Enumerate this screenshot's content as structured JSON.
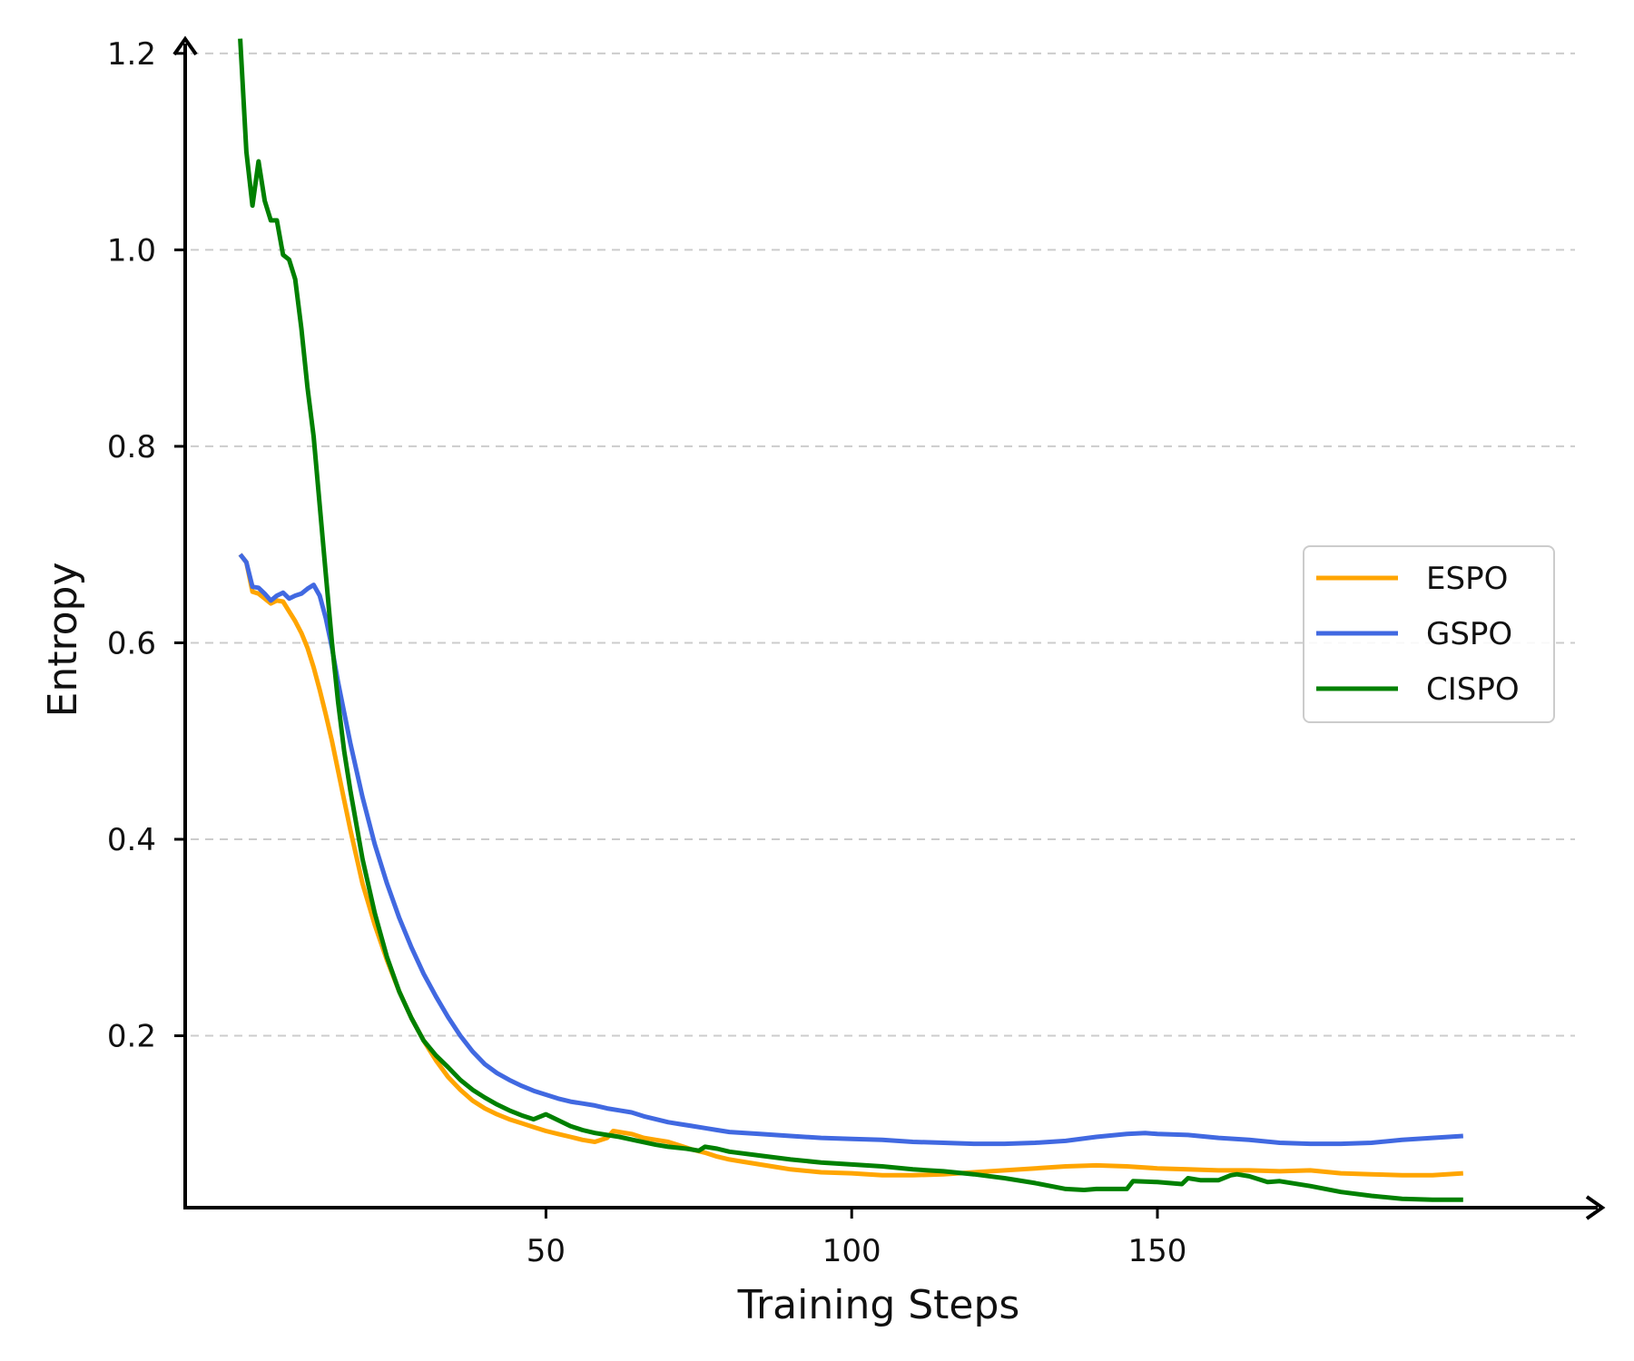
{
  "chart_data": {
    "type": "line",
    "title": "",
    "xlabel": "Training Steps",
    "ylabel": "Entropy",
    "xlim": [
      -9,
      222
    ],
    "ylim": [
      0.025,
      1.21
    ],
    "xticks": [
      50,
      100,
      150
    ],
    "xtick_labels": [
      "50",
      "100",
      "150"
    ],
    "yticks": [
      0.2,
      0.4,
      0.6,
      0.8,
      1.0,
      1.2
    ],
    "ytick_labels": [
      "0.2",
      "0.4",
      "0.6",
      "0.8",
      "1.0",
      "1.2"
    ],
    "grid": "y-dashed",
    "legend_position": "center-right",
    "series": [
      {
        "name": "ESPO",
        "color": "#FFA500",
        "points": [
          [
            0,
            0.69
          ],
          [
            1,
            0.682
          ],
          [
            2,
            0.652
          ],
          [
            3,
            0.65
          ],
          [
            4,
            0.645
          ],
          [
            5,
            0.64
          ],
          [
            6,
            0.643
          ],
          [
            7,
            0.642
          ],
          [
            8,
            0.632
          ],
          [
            9,
            0.622
          ],
          [
            10,
            0.61
          ],
          [
            11,
            0.595
          ],
          [
            12,
            0.575
          ],
          [
            13,
            0.552
          ],
          [
            14,
            0.527
          ],
          [
            15,
            0.5
          ],
          [
            16,
            0.47
          ],
          [
            17,
            0.44
          ],
          [
            18,
            0.41
          ],
          [
            20,
            0.355
          ],
          [
            22,
            0.313
          ],
          [
            24,
            0.277
          ],
          [
            26,
            0.245
          ],
          [
            28,
            0.218
          ],
          [
            30,
            0.195
          ],
          [
            32,
            0.175
          ],
          [
            34,
            0.158
          ],
          [
            36,
            0.145
          ],
          [
            38,
            0.134
          ],
          [
            40,
            0.126
          ],
          [
            42,
            0.12
          ],
          [
            44,
            0.115
          ],
          [
            46,
            0.111
          ],
          [
            48,
            0.107
          ],
          [
            50,
            0.103
          ],
          [
            52,
            0.1
          ],
          [
            54,
            0.097
          ],
          [
            56,
            0.094
          ],
          [
            58,
            0.092
          ],
          [
            60,
            0.096
          ],
          [
            61,
            0.103
          ],
          [
            62,
            0.102
          ],
          [
            64,
            0.1
          ],
          [
            66,
            0.096
          ],
          [
            68,
            0.094
          ],
          [
            70,
            0.092
          ],
          [
            72,
            0.088
          ],
          [
            74,
            0.084
          ],
          [
            76,
            0.081
          ],
          [
            78,
            0.077
          ],
          [
            80,
            0.074
          ],
          [
            82,
            0.072
          ],
          [
            85,
            0.069
          ],
          [
            88,
            0.066
          ],
          [
            90,
            0.064
          ],
          [
            95,
            0.061
          ],
          [
            100,
            0.06
          ],
          [
            105,
            0.058
          ],
          [
            110,
            0.058
          ],
          [
            115,
            0.059
          ],
          [
            120,
            0.061
          ],
          [
            125,
            0.063
          ],
          [
            130,
            0.065
          ],
          [
            135,
            0.067
          ],
          [
            140,
            0.068
          ],
          [
            145,
            0.067
          ],
          [
            150,
            0.065
          ],
          [
            155,
            0.064
          ],
          [
            160,
            0.063
          ],
          [
            165,
            0.063
          ],
          [
            170,
            0.062
          ],
          [
            175,
            0.063
          ],
          [
            180,
            0.06
          ],
          [
            185,
            0.059
          ],
          [
            190,
            0.058
          ],
          [
            195,
            0.058
          ],
          [
            200,
            0.06
          ]
        ]
      },
      {
        "name": "GSPO",
        "color": "#4169E1",
        "points": [
          [
            0,
            0.69
          ],
          [
            1,
            0.682
          ],
          [
            2,
            0.657
          ],
          [
            3,
            0.656
          ],
          [
            4,
            0.65
          ],
          [
            5,
            0.643
          ],
          [
            6,
            0.648
          ],
          [
            7,
            0.651
          ],
          [
            8,
            0.645
          ],
          [
            9,
            0.648
          ],
          [
            10,
            0.65
          ],
          [
            11,
            0.655
          ],
          [
            12,
            0.659
          ],
          [
            13,
            0.648
          ],
          [
            14,
            0.625
          ],
          [
            15,
            0.595
          ],
          [
            16,
            0.56
          ],
          [
            18,
            0.498
          ],
          [
            20,
            0.443
          ],
          [
            22,
            0.395
          ],
          [
            24,
            0.355
          ],
          [
            26,
            0.32
          ],
          [
            28,
            0.29
          ],
          [
            30,
            0.263
          ],
          [
            32,
            0.24
          ],
          [
            34,
            0.219
          ],
          [
            36,
            0.2
          ],
          [
            38,
            0.184
          ],
          [
            40,
            0.171
          ],
          [
            42,
            0.162
          ],
          [
            44,
            0.155
          ],
          [
            46,
            0.149
          ],
          [
            48,
            0.144
          ],
          [
            50,
            0.14
          ],
          [
            52,
            0.136
          ],
          [
            54,
            0.133
          ],
          [
            56,
            0.131
          ],
          [
            58,
            0.129
          ],
          [
            60,
            0.126
          ],
          [
            62,
            0.124
          ],
          [
            64,
            0.122
          ],
          [
            66,
            0.118
          ],
          [
            68,
            0.115
          ],
          [
            70,
            0.112
          ],
          [
            72,
            0.11
          ],
          [
            74,
            0.108
          ],
          [
            76,
            0.106
          ],
          [
            78,
            0.104
          ],
          [
            80,
            0.102
          ],
          [
            85,
            0.1
          ],
          [
            90,
            0.098
          ],
          [
            95,
            0.096
          ],
          [
            100,
            0.095
          ],
          [
            105,
            0.094
          ],
          [
            110,
            0.092
          ],
          [
            115,
            0.091
          ],
          [
            120,
            0.09
          ],
          [
            125,
            0.09
          ],
          [
            130,
            0.091
          ],
          [
            135,
            0.093
          ],
          [
            140,
            0.097
          ],
          [
            145,
            0.1
          ],
          [
            148,
            0.101
          ],
          [
            150,
            0.1
          ],
          [
            155,
            0.099
          ],
          [
            160,
            0.096
          ],
          [
            165,
            0.094
          ],
          [
            170,
            0.091
          ],
          [
            175,
            0.09
          ],
          [
            180,
            0.09
          ],
          [
            185,
            0.091
          ],
          [
            190,
            0.094
          ],
          [
            195,
            0.096
          ],
          [
            200,
            0.098
          ]
        ]
      },
      {
        "name": "CISPO",
        "color": "#008000",
        "points": [
          [
            0,
            1.215
          ],
          [
            1,
            1.1
          ],
          [
            2,
            1.045
          ],
          [
            3,
            1.09
          ],
          [
            4,
            1.05
          ],
          [
            5,
            1.03
          ],
          [
            6,
            1.03
          ],
          [
            7,
            0.995
          ],
          [
            8,
            0.99
          ],
          [
            9,
            0.97
          ],
          [
            10,
            0.92
          ],
          [
            11,
            0.86
          ],
          [
            12,
            0.81
          ],
          [
            13,
            0.74
          ],
          [
            14,
            0.67
          ],
          [
            15,
            0.6
          ],
          [
            16,
            0.54
          ],
          [
            17,
            0.49
          ],
          [
            18,
            0.45
          ],
          [
            20,
            0.38
          ],
          [
            22,
            0.325
          ],
          [
            24,
            0.28
          ],
          [
            26,
            0.245
          ],
          [
            28,
            0.218
          ],
          [
            30,
            0.195
          ],
          [
            32,
            0.18
          ],
          [
            34,
            0.168
          ],
          [
            36,
            0.155
          ],
          [
            38,
            0.145
          ],
          [
            40,
            0.137
          ],
          [
            42,
            0.13
          ],
          [
            44,
            0.124
          ],
          [
            46,
            0.119
          ],
          [
            48,
            0.115
          ],
          [
            50,
            0.12
          ],
          [
            52,
            0.114
          ],
          [
            54,
            0.108
          ],
          [
            56,
            0.104
          ],
          [
            58,
            0.101
          ],
          [
            60,
            0.099
          ],
          [
            62,
            0.097
          ],
          [
            65,
            0.093
          ],
          [
            68,
            0.089
          ],
          [
            70,
            0.087
          ],
          [
            73,
            0.085
          ],
          [
            75,
            0.083
          ],
          [
            76,
            0.087
          ],
          [
            78,
            0.085
          ],
          [
            80,
            0.082
          ],
          [
            85,
            0.078
          ],
          [
            90,
            0.074
          ],
          [
            95,
            0.071
          ],
          [
            100,
            0.069
          ],
          [
            105,
            0.067
          ],
          [
            110,
            0.064
          ],
          [
            115,
            0.062
          ],
          [
            120,
            0.059
          ],
          [
            125,
            0.055
          ],
          [
            130,
            0.05
          ],
          [
            135,
            0.044
          ],
          [
            138,
            0.043
          ],
          [
            140,
            0.044
          ],
          [
            145,
            0.044
          ],
          [
            146,
            0.052
          ],
          [
            150,
            0.051
          ],
          [
            154,
            0.049
          ],
          [
            155,
            0.055
          ],
          [
            157,
            0.053
          ],
          [
            160,
            0.053
          ],
          [
            162,
            0.058
          ],
          [
            163,
            0.059
          ],
          [
            165,
            0.057
          ],
          [
            168,
            0.051
          ],
          [
            170,
            0.052
          ],
          [
            175,
            0.047
          ],
          [
            180,
            0.041
          ],
          [
            185,
            0.037
          ],
          [
            190,
            0.034
          ],
          [
            195,
            0.033
          ],
          [
            200,
            0.033
          ]
        ]
      }
    ]
  }
}
